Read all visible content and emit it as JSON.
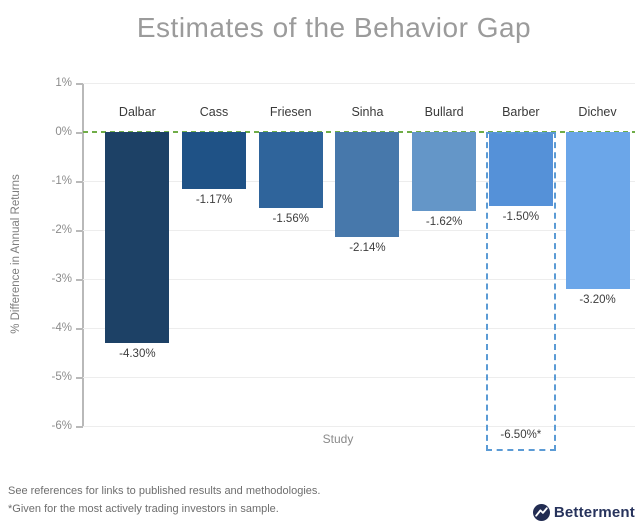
{
  "chart_data": {
    "type": "bar",
    "title": "Estimates of the Behavior Gap",
    "xlabel": "Study",
    "ylabel": "% Difference in Annual Returns",
    "ylim": [
      -6.5,
      1
    ],
    "yticks": [
      1,
      0,
      -1,
      -2,
      -3,
      -4,
      -5,
      -6
    ],
    "ytick_labels": [
      "1%",
      "0%",
      "-1%",
      "-2%",
      "-3%",
      "-4%",
      "-5%",
      "-6%"
    ],
    "grid": "horizontal",
    "zero_line": {
      "value": 0,
      "style": "dashed",
      "color": "#70ad47"
    },
    "categories": [
      "Dalbar",
      "Cass",
      "Friesen",
      "Sinha",
      "Bullard",
      "Barber",
      "Dichev"
    ],
    "values": [
      -4.3,
      -1.17,
      -1.56,
      -2.14,
      -1.62,
      -1.5,
      -3.2
    ],
    "value_labels": [
      "-4.30%",
      "-1.17%",
      "-1.56%",
      "-2.14%",
      "-1.62%",
      "-1.50%",
      "-3.20%"
    ],
    "bar_colors": [
      "#1d4166",
      "#1f5286",
      "#2f649b",
      "#4778ab",
      "#6496c8",
      "#5591d8",
      "#6ba6e9"
    ],
    "annotation": {
      "category": "Barber",
      "value": -6.5,
      "label": "-6.50%*",
      "style": "dashed-outline",
      "color": "#5b9bd5"
    }
  },
  "footnotes": [
    "See references for links to published results and methodologies.",
    "*Given for the most actively trading investors in sample."
  ],
  "logo": {
    "text": "Betterment",
    "color": "#222c52"
  }
}
